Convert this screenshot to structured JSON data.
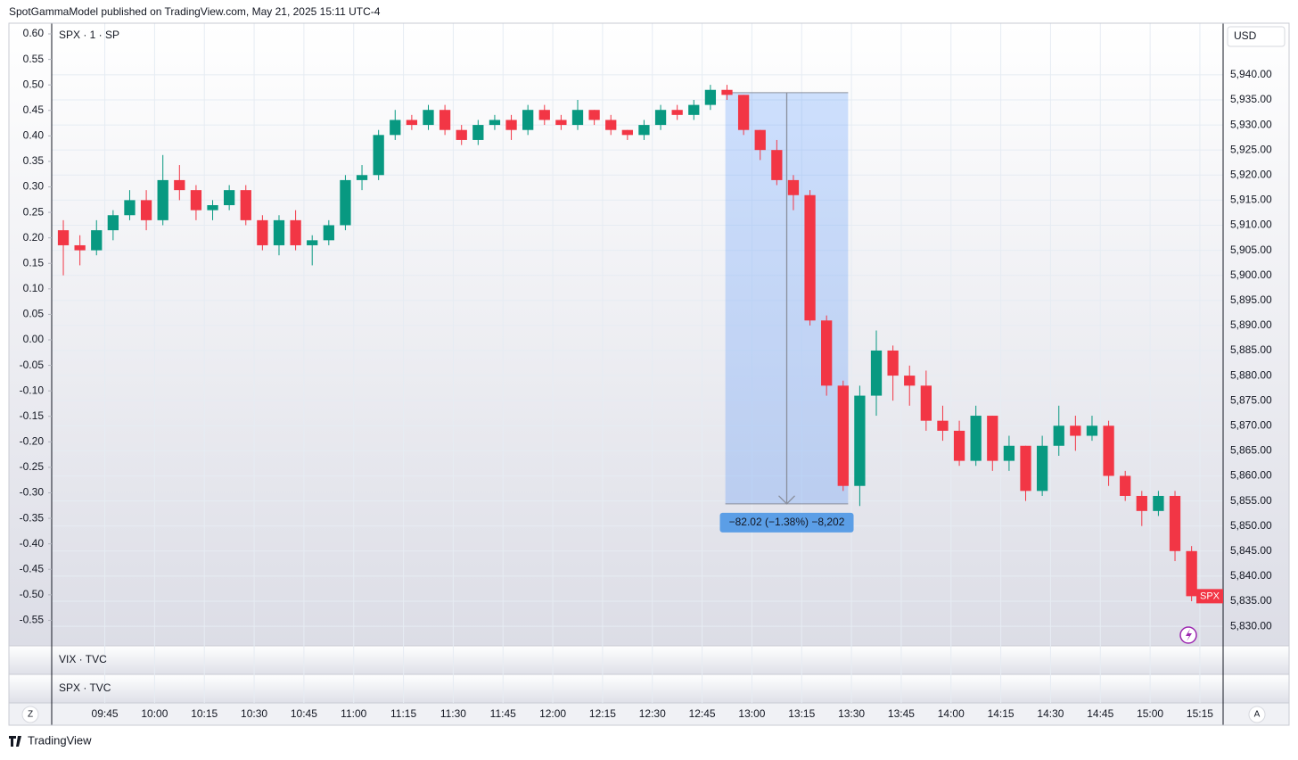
{
  "header": "SpotGammaModel published on TradingView.com, May 21, 2025 15:11 UTC-4",
  "chart_data": {
    "type": "candlestick",
    "legend": "SPX · 1 · SP",
    "currency": "USD",
    "price_tag": "SPX",
    "up_color": "#089981",
    "down_color": "#f23645",
    "grid": true,
    "x": [
      "09:30",
      "09:35",
      "09:40",
      "09:45",
      "09:50",
      "09:55",
      "10:00",
      "10:05",
      "10:10",
      "10:15",
      "10:20",
      "10:25",
      "10:30",
      "10:35",
      "10:40",
      "10:45",
      "10:50",
      "10:55",
      "11:00",
      "11:05",
      "11:10",
      "11:15",
      "11:20",
      "11:25",
      "11:30",
      "11:35",
      "11:40",
      "11:45",
      "11:50",
      "11:55",
      "12:00",
      "12:05",
      "12:10",
      "12:15",
      "12:20",
      "12:25",
      "12:30",
      "12:35",
      "12:40",
      "12:45",
      "12:50",
      "12:55",
      "13:00",
      "13:05",
      "13:10",
      "13:15",
      "13:20",
      "13:25",
      "13:30",
      "13:35",
      "13:40",
      "13:45",
      "13:50",
      "13:55",
      "14:00",
      "14:05",
      "14:10",
      "14:15",
      "14:20",
      "14:25",
      "14:30",
      "14:35",
      "14:40",
      "14:45",
      "14:50",
      "14:55",
      "15:00",
      "15:05",
      "15:10"
    ],
    "open": [
      5909,
      5906,
      5905,
      5909,
      5912,
      5915,
      5911,
      5919,
      5917,
      5913,
      5914,
      5917,
      5911,
      5906,
      5911,
      5906,
      5907,
      5910,
      5919,
      5920,
      5928,
      5931,
      5930,
      5933,
      5929,
      5927,
      5930,
      5931,
      5929,
      5933,
      5931,
      5930,
      5933,
      5931,
      5929,
      5928,
      5930,
      5933,
      5932,
      5934,
      5937,
      5936,
      5929,
      5925,
      5919,
      5916,
      5891,
      5878,
      5858,
      5876,
      5885,
      5880,
      5878,
      5871,
      5869,
      5863,
      5872,
      5863,
      5866,
      5857,
      5866,
      5870,
      5868,
      5870,
      5860,
      5856,
      5853,
      5856,
      5845
    ],
    "high": [
      5911,
      5908,
      5911,
      5913,
      5917,
      5917,
      5924,
      5922,
      5918,
      5915,
      5918,
      5918,
      5912,
      5912,
      5913,
      5908,
      5911,
      5920,
      5922,
      5929,
      5933,
      5932,
      5934,
      5934,
      5930,
      5931,
      5932,
      5932,
      5934,
      5934,
      5932,
      5935,
      5933,
      5932,
      5929,
      5931,
      5934,
      5934,
      5935,
      5938,
      5938,
      5936,
      5929,
      5927,
      5920,
      5917,
      5892,
      5879,
      5878,
      5889,
      5886,
      5882,
      5881,
      5874,
      5871,
      5874,
      5872,
      5868,
      5866,
      5868,
      5874,
      5872,
      5872,
      5871,
      5861,
      5857,
      5857,
      5857,
      5846
    ],
    "low": [
      5900,
      5902,
      5904,
      5907,
      5911,
      5909,
      5910,
      5915,
      5911,
      5911,
      5913,
      5910,
      5905,
      5904,
      5905,
      5902,
      5906,
      5909,
      5917,
      5919,
      5927,
      5929,
      5929,
      5928,
      5926,
      5926,
      5929,
      5927,
      5928,
      5930,
      5929,
      5929,
      5930,
      5928,
      5927,
      5927,
      5929,
      5931,
      5931,
      5933,
      5935,
      5928,
      5923,
      5918,
      5913,
      5890,
      5876,
      5857,
      5854,
      5872,
      5875,
      5874,
      5869,
      5867,
      5862,
      5862,
      5861,
      5861,
      5855,
      5856,
      5864,
      5865,
      5867,
      5858,
      5855,
      5850,
      5852,
      5843,
      5835
    ],
    "close": [
      5906,
      5905,
      5909,
      5912,
      5915,
      5911,
      5919,
      5917,
      5913,
      5914,
      5917,
      5911,
      5906,
      5911,
      5906,
      5907,
      5910,
      5919,
      5920,
      5928,
      5931,
      5930,
      5933,
      5929,
      5927,
      5930,
      5931,
      5929,
      5933,
      5931,
      5930,
      5933,
      5931,
      5929,
      5928,
      5930,
      5933,
      5932,
      5934,
      5937,
      5936,
      5929,
      5925,
      5919,
      5916,
      5891,
      5878,
      5858,
      5876,
      5885,
      5880,
      5878,
      5871,
      5869,
      5863,
      5872,
      5863,
      5866,
      5857,
      5866,
      5870,
      5868,
      5870,
      5860,
      5856,
      5853,
      5856,
      5845,
      5836
    ],
    "xlim": [
      "09:29",
      "15:22"
    ],
    "xticks": [
      "09:45",
      "10:00",
      "10:15",
      "10:30",
      "10:45",
      "11:00",
      "11:15",
      "11:30",
      "11:45",
      "12:00",
      "12:15",
      "12:30",
      "12:45",
      "13:00",
      "13:15",
      "13:30",
      "13:45",
      "14:00",
      "14:15",
      "14:30",
      "14:45",
      "15:00",
      "15:15"
    ],
    "ylim": [
      5826.1,
      5950.3
    ],
    "yticks": [
      {
        "value": 5830,
        "label": "5,830.00"
      },
      {
        "value": 5835,
        "label": "5,835.00"
      },
      {
        "value": 5840,
        "label": "5,840.00"
      },
      {
        "value": 5845,
        "label": "5,845.00"
      },
      {
        "value": 5850,
        "label": "5,850.00"
      },
      {
        "value": 5855,
        "label": "5,855.00"
      },
      {
        "value": 5860,
        "label": "5,860.00"
      },
      {
        "value": 5865,
        "label": "5,865.00"
      },
      {
        "value": 5870,
        "label": "5,870.00"
      },
      {
        "value": 5875,
        "label": "5,875.00"
      },
      {
        "value": 5880,
        "label": "5,880.00"
      },
      {
        "value": 5885,
        "label": "5,885.00"
      },
      {
        "value": 5890,
        "label": "5,890.00"
      },
      {
        "value": 5895,
        "label": "5,895.00"
      },
      {
        "value": 5900,
        "label": "5,900.00"
      },
      {
        "value": 5905,
        "label": "5,905.00"
      },
      {
        "value": 5910,
        "label": "5,910.00"
      },
      {
        "value": 5915,
        "label": "5,915.00"
      },
      {
        "value": 5920,
        "label": "5,920.00"
      },
      {
        "value": 5925,
        "label": "5,925.00"
      },
      {
        "value": 5930,
        "label": "5,930.00"
      },
      {
        "value": 5935,
        "label": "5,935.00"
      },
      {
        "value": 5940,
        "label": "5,940.00"
      }
    ],
    "y2lim": [
      -0.6,
      0.621
    ],
    "y2ticks": [
      {
        "value": 0.6,
        "label": "0.60"
      },
      {
        "value": 0.55,
        "label": "0.55"
      },
      {
        "value": 0.5,
        "label": "0.50"
      },
      {
        "value": 0.45,
        "label": "0.45"
      },
      {
        "value": 0.4,
        "label": "0.40"
      },
      {
        "value": 0.35,
        "label": "0.35"
      },
      {
        "value": 0.3,
        "label": "0.30"
      },
      {
        "value": 0.25,
        "label": "0.25"
      },
      {
        "value": 0.2,
        "label": "0.20"
      },
      {
        "value": 0.15,
        "label": "0.15"
      },
      {
        "value": 0.1,
        "label": "0.10"
      },
      {
        "value": 0.05,
        "label": "0.05"
      },
      {
        "value": 0,
        "label": "0.00"
      },
      {
        "value": -0.05,
        "label": "-0.05"
      },
      {
        "value": -0.1,
        "label": "-0.10"
      },
      {
        "value": -0.15,
        "label": "-0.15"
      },
      {
        "value": -0.2,
        "label": "-0.20"
      },
      {
        "value": -0.25,
        "label": "-0.25"
      },
      {
        "value": -0.3,
        "label": "-0.30"
      },
      {
        "value": -0.35,
        "label": "-0.35"
      },
      {
        "value": -0.4,
        "label": "-0.40"
      },
      {
        "value": -0.45,
        "label": "-0.45"
      },
      {
        "value": -0.5,
        "label": "-0.50"
      },
      {
        "value": -0.55,
        "label": "-0.55"
      }
    ],
    "measure": {
      "from": "12:52",
      "to": "13:29",
      "start": 5936.44,
      "end": 5854.42,
      "label": "−82.02 (−1.38%) −8,202"
    },
    "panes": [
      "VIX · TVC",
      "SPX · TVC"
    ],
    "buttons": [
      "Z",
      "A"
    ]
  },
  "footer": "TradingView"
}
